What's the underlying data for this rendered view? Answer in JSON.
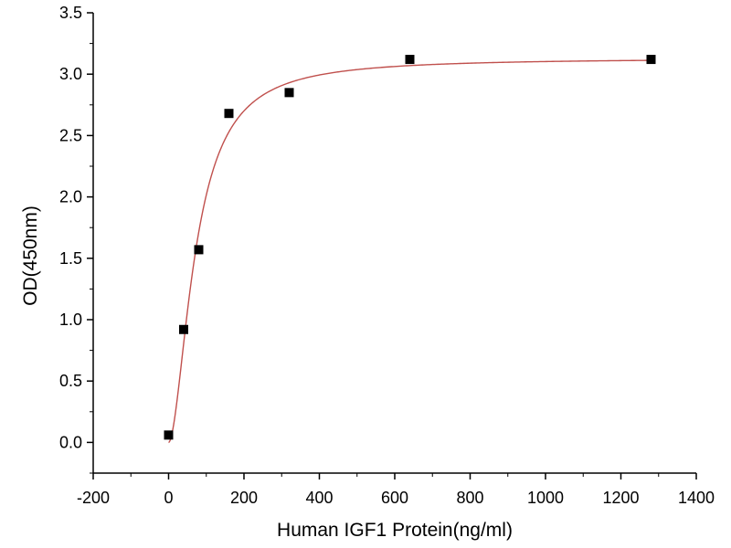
{
  "chart_data": {
    "type": "scatter",
    "xlabel": "Human IGF1 Protein(ng/ml)",
    "ylabel": "OD(450nm)",
    "xlim": [
      -200,
      1400
    ],
    "ylim": [
      -0.25,
      3.5
    ],
    "x_ticks": [
      "-200",
      "0",
      "200",
      "400",
      "600",
      "800",
      "1000",
      "1200",
      "1400"
    ],
    "y_ticks": [
      "0.0",
      "0.5",
      "1.0",
      "1.5",
      "2.0",
      "2.5",
      "3.0",
      "3.5"
    ],
    "grid": false,
    "series": [
      {
        "x": [
          0,
          40,
          80,
          160,
          320,
          640,
          1280
        ],
        "y": [
          0.06,
          0.92,
          1.57,
          2.68,
          2.85,
          3.12,
          3.12
        ]
      }
    ],
    "fit": {
      "type": "4PL",
      "bottom": 0.0,
      "top": 3.13,
      "ec50": 72,
      "hill": 1.8
    },
    "colors": {
      "points": "#000000",
      "fit": "#c0504d",
      "axes": "#000000"
    }
  }
}
